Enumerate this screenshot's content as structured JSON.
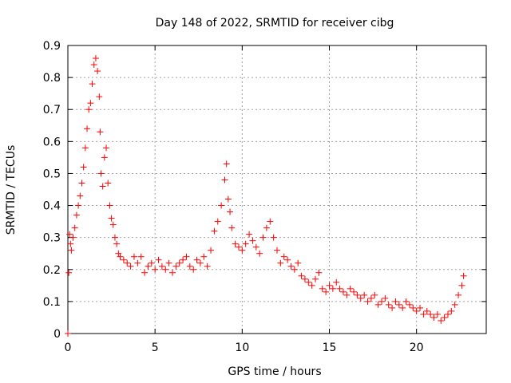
{
  "chart_data": {
    "type": "scatter",
    "title": "Day 148 of 2022, SRMTID for receiver cibg",
    "xlabel": "GPS time / hours",
    "ylabel": "SRMTID / TECUs",
    "xlim": [
      0,
      24
    ],
    "ylim": [
      0,
      0.9
    ],
    "xticks": [
      0,
      5,
      10,
      15,
      20
    ],
    "xtick_labels": [
      "0",
      "5",
      "10",
      "15",
      "20"
    ],
    "yticks": [
      0,
      0.1,
      0.2,
      0.3,
      0.4,
      0.5,
      0.6,
      0.7,
      0.8,
      0.9
    ],
    "ytick_labels": [
      "0",
      "0.1",
      "0.2",
      "0.3",
      "0.4",
      "0.5",
      "0.6",
      "0.7",
      "0.8",
      "0.9"
    ],
    "grid": true,
    "marker": "+",
    "color": "#ff0000",
    "series": [
      {
        "name": "SRMTID",
        "x": [
          0.0,
          0.05,
          0.1,
          0.15,
          0.2,
          0.3,
          0.4,
          0.5,
          0.6,
          0.7,
          0.8,
          0.9,
          1.0,
          1.1,
          1.2,
          1.3,
          1.4,
          1.5,
          1.6,
          1.7,
          1.8,
          1.85,
          1.9,
          2.0,
          2.1,
          2.2,
          2.3,
          2.4,
          2.5,
          2.6,
          2.7,
          2.8,
          2.9,
          3.0,
          3.2,
          3.4,
          3.6,
          3.8,
          4.0,
          4.2,
          4.4,
          4.6,
          4.8,
          5.0,
          5.2,
          5.4,
          5.6,
          5.8,
          6.0,
          6.2,
          6.4,
          6.6,
          6.8,
          7.0,
          7.2,
          7.4,
          7.6,
          7.8,
          8.0,
          8.2,
          8.4,
          8.6,
          8.8,
          9.0,
          9.1,
          9.2,
          9.3,
          9.4,
          9.6,
          9.8,
          10.0,
          10.2,
          10.4,
          10.6,
          10.8,
          11.0,
          11.2,
          11.4,
          11.6,
          11.8,
          12.0,
          12.2,
          12.4,
          12.6,
          12.8,
          13.0,
          13.2,
          13.4,
          13.6,
          13.8,
          14.0,
          14.2,
          14.4,
          14.6,
          14.8,
          15.0,
          15.2,
          15.4,
          15.6,
          15.8,
          16.0,
          16.2,
          16.4,
          16.6,
          16.8,
          17.0,
          17.2,
          17.4,
          17.6,
          17.8,
          18.0,
          18.2,
          18.4,
          18.6,
          18.8,
          19.0,
          19.2,
          19.4,
          19.6,
          19.8,
          20.0,
          20.2,
          20.4,
          20.6,
          20.8,
          21.0,
          21.2,
          21.4,
          21.6,
          21.8,
          22.0,
          22.2,
          22.4,
          22.6,
          22.7
        ],
        "y": [
          0.0,
          0.19,
          0.31,
          0.28,
          0.26,
          0.3,
          0.33,
          0.37,
          0.4,
          0.43,
          0.47,
          0.52,
          0.58,
          0.64,
          0.7,
          0.72,
          0.78,
          0.84,
          0.86,
          0.82,
          0.74,
          0.63,
          0.5,
          0.46,
          0.55,
          0.58,
          0.47,
          0.4,
          0.36,
          0.34,
          0.3,
          0.28,
          0.25,
          0.24,
          0.23,
          0.22,
          0.21,
          0.24,
          0.22,
          0.24,
          0.19,
          0.21,
          0.22,
          0.2,
          0.23,
          0.21,
          0.2,
          0.22,
          0.19,
          0.21,
          0.22,
          0.23,
          0.24,
          0.21,
          0.2,
          0.23,
          0.22,
          0.24,
          0.21,
          0.26,
          0.32,
          0.35,
          0.4,
          0.48,
          0.53,
          0.42,
          0.38,
          0.33,
          0.28,
          0.27,
          0.26,
          0.28,
          0.31,
          0.29,
          0.27,
          0.25,
          0.3,
          0.33,
          0.35,
          0.3,
          0.26,
          0.22,
          0.24,
          0.23,
          0.21,
          0.2,
          0.22,
          0.18,
          0.17,
          0.16,
          0.15,
          0.17,
          0.19,
          0.14,
          0.13,
          0.15,
          0.14,
          0.16,
          0.14,
          0.13,
          0.12,
          0.14,
          0.13,
          0.12,
          0.11,
          0.12,
          0.1,
          0.11,
          0.12,
          0.09,
          0.1,
          0.11,
          0.09,
          0.08,
          0.1,
          0.09,
          0.08,
          0.1,
          0.09,
          0.08,
          0.07,
          0.08,
          0.06,
          0.07,
          0.06,
          0.05,
          0.06,
          0.04,
          0.05,
          0.06,
          0.07,
          0.09,
          0.12,
          0.15,
          0.18
        ]
      }
    ]
  }
}
